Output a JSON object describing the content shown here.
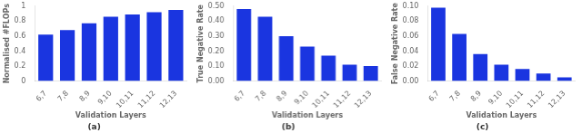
{
  "chart_data": [
    {
      "type": "bar",
      "categories": [
        "6,7",
        "7,8",
        "8,9",
        "9,10",
        "10,11",
        "11,12",
        "12,13"
      ],
      "values": [
        0.62,
        0.68,
        0.77,
        0.86,
        0.89,
        0.92,
        0.95
      ],
      "color": "#1a35e0",
      "xlabel": "Validation Layers",
      "ylabel": "Normalised #FLOPs",
      "annotations": [
        "(a)"
      ],
      "ylim": [
        0,
        1.0
      ],
      "yticks": [
        0,
        0.2,
        0.4,
        0.6,
        0.8,
        1
      ],
      "grid": false
    },
    {
      "type": "bar",
      "categories": [
        "6,7",
        "7,8",
        "8,9",
        "9,10",
        "10,11",
        "11,12",
        "12,13"
      ],
      "values": [
        0.48,
        0.43,
        0.3,
        0.23,
        0.17,
        0.11,
        0.1
      ],
      "color": "#1a35e0",
      "xlabel": "Validation Layers",
      "ylabel": "True Negative Rate",
      "annotations": [
        "(b)"
      ],
      "ylim": [
        0.0,
        0.5
      ],
      "yticks": [
        {
          "value": 0.0,
          "label": "0.00"
        },
        {
          "value": 0.1,
          "label": "0.10"
        },
        {
          "value": 0.2,
          "label": "0.20"
        },
        {
          "value": 0.3,
          "label": "0.30"
        },
        {
          "value": 0.4,
          "label": "0.40"
        },
        {
          "value": 0.5,
          "label": "0.50"
        }
      ],
      "grid": false
    },
    {
      "type": "bar",
      "categories": [
        "6,7",
        "7,8",
        "8,9",
        "9,10",
        "10,11",
        "11,12",
        "12,13"
      ],
      "values": [
        0.098,
        0.063,
        0.036,
        0.022,
        0.016,
        0.01,
        0.005
      ],
      "color": "#1a35e0",
      "xlabel": "Validation Layers",
      "ylabel": "False Negative Rate",
      "annotations": [
        "(c)"
      ],
      "ylim": [
        0.0,
        0.1
      ],
      "yticks": [
        {
          "value": 0.0,
          "label": "0.00"
        },
        {
          "value": 0.02,
          "label": "0.02"
        },
        {
          "value": 0.04,
          "label": "0.04"
        },
        {
          "value": 0.06,
          "label": "0.06"
        },
        {
          "value": 0.08,
          "label": "0.08"
        },
        {
          "value": 0.1,
          "label": "0.10"
        }
      ],
      "grid": false
    }
  ]
}
